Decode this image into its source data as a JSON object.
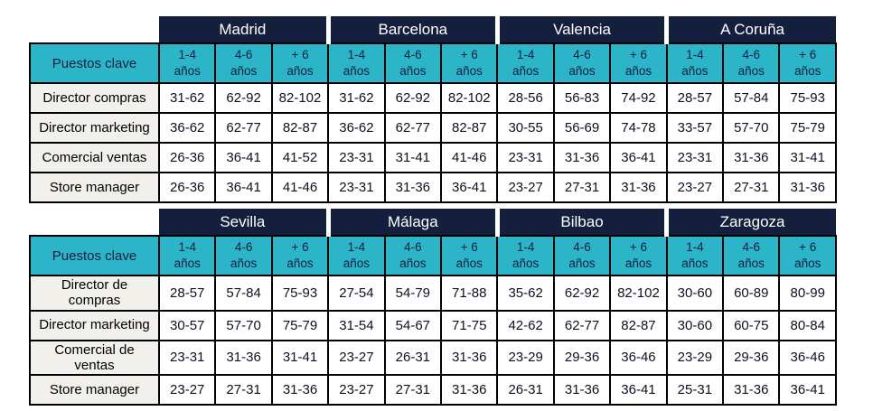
{
  "colors": {
    "navy": "#141f3d",
    "cyan": "#2cb5c9",
    "label_bg": "#f2f0ea",
    "line": "#000000",
    "ink": "#0d1021"
  },
  "key_column_header": "Puestos clave",
  "experience_headers": [
    "1-4\naños",
    "4-6\naños",
    "+ 6\naños"
  ],
  "tables": [
    {
      "cities": [
        "Madrid",
        "Barcelona",
        "Valencia",
        "A Coruña"
      ],
      "rows": [
        {
          "label": "Director compras",
          "values": [
            [
              "31-62",
              "62-92",
              "82-102"
            ],
            [
              "31-62",
              "62-92",
              "82-102"
            ],
            [
              "28-56",
              "56-83",
              "74-92"
            ],
            [
              "28-57",
              "57-84",
              "75-93"
            ]
          ]
        },
        {
          "label": "Director marketing",
          "values": [
            [
              "36-62",
              "62-77",
              "82-87"
            ],
            [
              "36-62",
              "62-77",
              "82-87"
            ],
            [
              "30-55",
              "56-69",
              "74-78"
            ],
            [
              "33-57",
              "57-70",
              "75-79"
            ]
          ]
        },
        {
          "label": "Comercial ventas",
          "values": [
            [
              "26-36",
              "36-41",
              "41-52"
            ],
            [
              "23-31",
              "31-41",
              "41-46"
            ],
            [
              "23-31",
              "31-36",
              "36-41"
            ],
            [
              "23-31",
              "31-36",
              "31-41"
            ]
          ]
        },
        {
          "label": "Store manager",
          "values": [
            [
              "26-36",
              "36-41",
              "41-46"
            ],
            [
              "23-31",
              "31-36",
              "36-41"
            ],
            [
              "23-27",
              "27-31",
              "31-36"
            ],
            [
              "23-27",
              "27-31",
              "31-36"
            ]
          ]
        }
      ]
    },
    {
      "cities": [
        "Sevilla",
        "Málaga",
        "Bilbao",
        "Zaragoza"
      ],
      "rows": [
        {
          "label": "Director de\ncompras",
          "values": [
            [
              "28-57",
              "57-84",
              "75-93"
            ],
            [
              "27-54",
              "54-79",
              "71-88"
            ],
            [
              "35-62",
              "62-92",
              "82-102"
            ],
            [
              "30-60",
              "60-89",
              "80-99"
            ]
          ]
        },
        {
          "label": "Director marketing",
          "values": [
            [
              "30-57",
              "57-70",
              "75-79"
            ],
            [
              "31-54",
              "54-67",
              "71-75"
            ],
            [
              "42-62",
              "62-77",
              "82-87"
            ],
            [
              "30-60",
              "60-75",
              "80-84"
            ]
          ]
        },
        {
          "label": "Comercial de\nventas",
          "values": [
            [
              "23-31",
              "31-36",
              "31-41"
            ],
            [
              "23-27",
              "26-31",
              "31-36"
            ],
            [
              "23-29",
              "29-36",
              "36-46"
            ],
            [
              "23-29",
              "29-36",
              "36-46"
            ]
          ]
        },
        {
          "label": "Store manager",
          "values": [
            [
              "23-27",
              "27-31",
              "31-36"
            ],
            [
              "23-27",
              "27-31",
              "31-36"
            ],
            [
              "26-31",
              "31-36",
              "36-41"
            ],
            [
              "25-31",
              "31-36",
              "36-41"
            ]
          ]
        }
      ]
    }
  ]
}
